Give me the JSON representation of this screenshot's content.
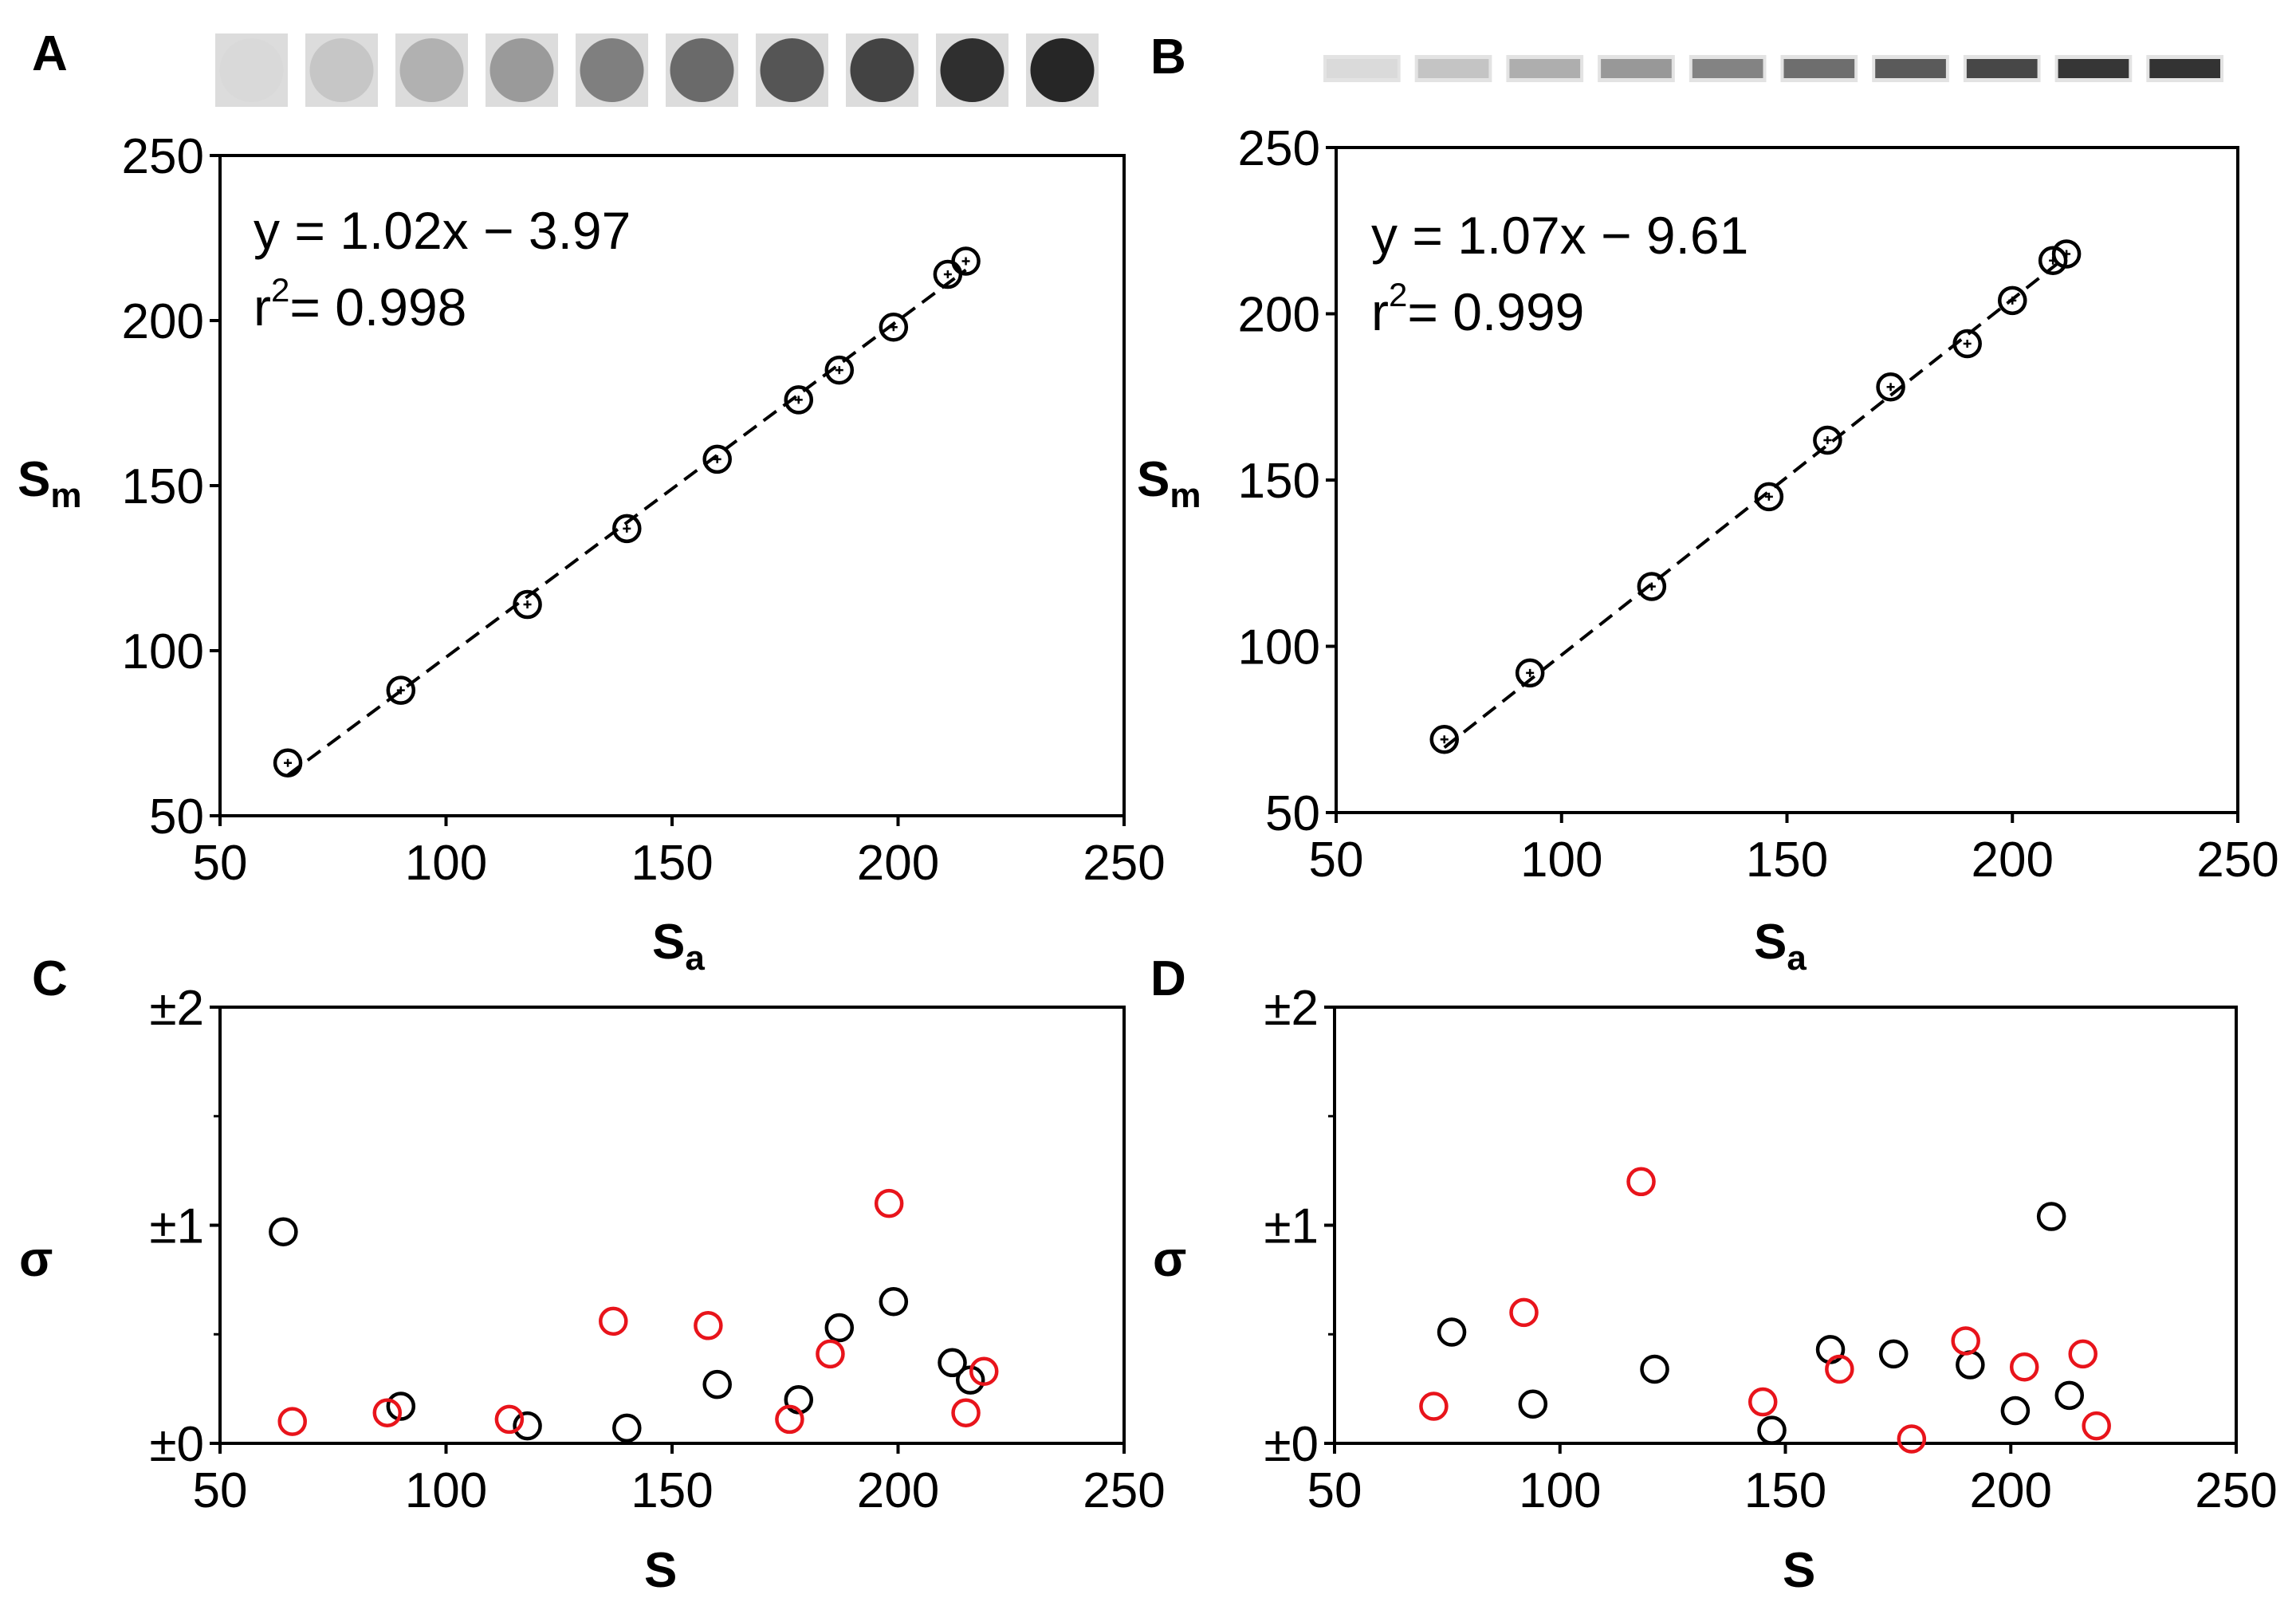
{
  "panel_labels": [
    "A",
    "B",
    "C",
    "D"
  ],
  "chart_data": [
    {
      "id": "A",
      "type": "scatter",
      "xlabel": "S",
      "xlabel_sub": "a",
      "ylabel": "S",
      "ylabel_sub": "m",
      "xlim": [
        50,
        250
      ],
      "ylim": [
        50,
        250
      ],
      "xticks": [
        "50",
        "100",
        "150",
        "200",
        "250"
      ],
      "yticks": [
        "50",
        "100",
        "150",
        "200",
        "250"
      ],
      "x": [
        65,
        90,
        118,
        140,
        160,
        178,
        187,
        199,
        211,
        215
      ],
      "y": [
        66,
        88,
        114,
        137,
        158,
        176,
        185,
        198,
        214,
        218
      ],
      "fit_line": {
        "slope": 1.02,
        "intercept": -3.97,
        "x_range": [
          65,
          215
        ]
      },
      "equation": "y = 1.02x − 3.97",
      "r2_prefix": "r",
      "r2_sup": "2",
      "r2_value": "= 0.998",
      "swatches": {
        "shape": "dot",
        "grays": [
          "#d9d9d9",
          "#c6c6c6",
          "#b1b1b1",
          "#9a9a9a",
          "#7f7f7f",
          "#6a6a6a",
          "#555555",
          "#434343",
          "#2f2f2f",
          "#262626"
        ]
      }
    },
    {
      "id": "B",
      "type": "scatter",
      "xlabel": "S",
      "xlabel_sub": "a",
      "ylabel": "S",
      "ylabel_sub": "m",
      "xlim": [
        50,
        250
      ],
      "ylim": [
        50,
        250
      ],
      "xticks": [
        "50",
        "100",
        "150",
        "200",
        "250"
      ],
      "yticks": [
        "50",
        "100",
        "150",
        "200",
        "250"
      ],
      "x": [
        74,
        93,
        120,
        146,
        159,
        173,
        190,
        200,
        209,
        212
      ],
      "y": [
        72,
        92,
        118,
        145,
        162,
        178,
        191,
        204,
        216,
        218
      ],
      "fit_line": {
        "slope": 1.07,
        "intercept": -9.61,
        "x_range": [
          74,
          212
        ]
      },
      "equation": "y = 1.07x − 9.61",
      "r2_prefix": "r",
      "r2_sup": "2",
      "r2_value": "= 0.999",
      "swatches": {
        "shape": "band",
        "grays": [
          "#dadada",
          "#c4c4c4",
          "#aeaeae",
          "#989898",
          "#838383",
          "#6e6e6e",
          "#5a5a5a",
          "#474747",
          "#363636",
          "#333333"
        ]
      }
    },
    {
      "id": "C",
      "type": "scatter",
      "xlabel": "S",
      "ylabel": "σ",
      "xlim": [
        50,
        250
      ],
      "ylim": [
        0,
        2
      ],
      "xticks": [
        "50",
        "100",
        "150",
        "200",
        "250"
      ],
      "yticks": [
        "±0",
        "±1",
        "±2"
      ],
      "series": [
        {
          "name": "black",
          "color": "#000000",
          "x": [
            64,
            90,
            118,
            140,
            160,
            178,
            187,
            199,
            212,
            216
          ],
          "y": [
            0.97,
            0.17,
            0.08,
            0.07,
            0.27,
            0.2,
            0.53,
            0.65,
            0.37,
            0.29
          ]
        },
        {
          "name": "red",
          "color": "#e8141b",
          "x": [
            66,
            87,
            114,
            137,
            158,
            176,
            185,
            198,
            215,
            219
          ],
          "y": [
            0.1,
            0.14,
            0.11,
            0.56,
            0.54,
            0.11,
            0.41,
            1.1,
            0.14,
            0.33
          ]
        }
      ]
    },
    {
      "id": "D",
      "type": "scatter",
      "xlabel": "S",
      "ylabel": "σ",
      "xlim": [
        50,
        250
      ],
      "ylim": [
        0,
        2
      ],
      "xticks": [
        "50",
        "100",
        "150",
        "200",
        "250"
      ],
      "yticks": [
        "±0",
        "±1",
        "±2"
      ],
      "series": [
        {
          "name": "black",
          "color": "#000000",
          "x": [
            76,
            94,
            121,
            147,
            160,
            174,
            191,
            201,
            209,
            213
          ],
          "y": [
            0.51,
            0.18,
            0.34,
            0.06,
            0.43,
            0.41,
            0.36,
            0.15,
            1.04,
            0.22
          ]
        },
        {
          "name": "red",
          "color": "#e8141b",
          "x": [
            72,
            92,
            118,
            145,
            162,
            178,
            190,
            203,
            216,
            219
          ],
          "y": [
            0.17,
            0.6,
            1.2,
            0.19,
            0.34,
            0.02,
            0.47,
            0.35,
            0.41,
            0.08
          ]
        }
      ]
    }
  ]
}
